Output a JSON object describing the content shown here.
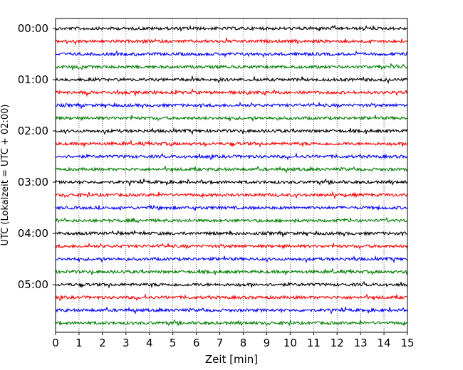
{
  "chart_data": {
    "type": "line",
    "title": "",
    "xlabel": "Zeit  [min]",
    "ylabel": "UTC (Lokalzeit = UTC + 02:00)",
    "xlim": [
      0,
      15
    ],
    "x_ticks": [
      0,
      1,
      2,
      3,
      4,
      5,
      6,
      7,
      8,
      9,
      10,
      11,
      12,
      13,
      14,
      15
    ],
    "x_grid": "dotted vertical lines at each minute",
    "y_ticks": [
      "00:00",
      "01:00",
      "02:00",
      "03:00",
      "04:00",
      "05:00"
    ],
    "trace_interval_minutes": 15,
    "trace_count": 24,
    "trace_colors": [
      "#000000",
      "#ff0000",
      "#0000ff",
      "#007f00"
    ],
    "series_description": "helicorder-style seismogram: one noise trace per 15-minute window, colors cycle black, red, blue, green"
  }
}
